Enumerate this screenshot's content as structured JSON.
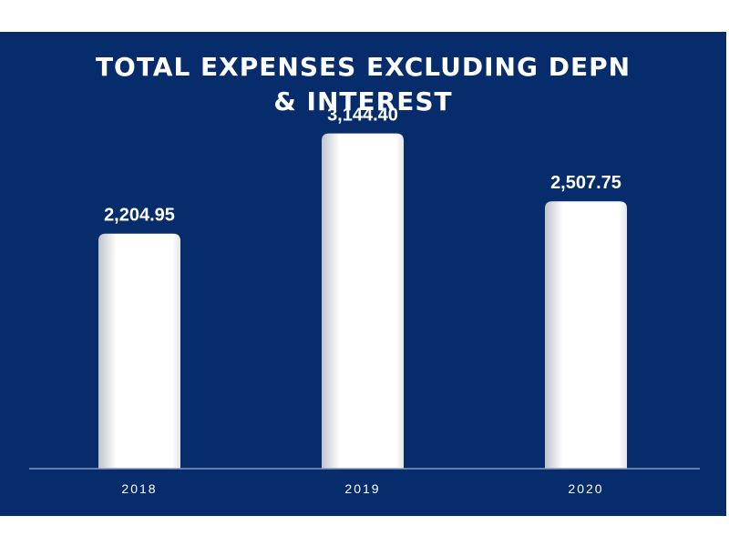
{
  "chart_data": {
    "type": "bar",
    "title": "TOTAL EXPENSES EXCLUDING DEPN\n& INTEREST",
    "categories": [
      "2018",
      "2019",
      "2020"
    ],
    "values": [
      2204.95,
      3144.4,
      2507.75
    ],
    "data_labels": [
      "2,204.95",
      "3,144.40",
      "2,507.75"
    ],
    "xlabel": "",
    "ylabel": "",
    "ylim": [
      0,
      3500
    ],
    "grid": false,
    "legend": "none"
  },
  "colors": {
    "background": "#072c6b",
    "bar": "#ffffff",
    "text": "#ffffff"
  }
}
